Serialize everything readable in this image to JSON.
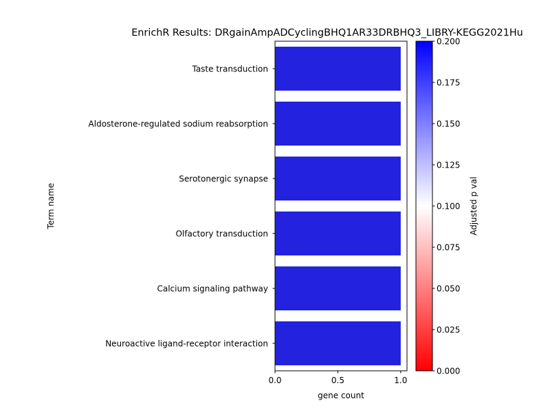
{
  "chart_data": {
    "type": "bar",
    "orientation": "horizontal",
    "title": "EnrichR Results: DRgainAmpADCyclingBHQ1AR33DRBHQ3_LIBRY-KEGG2021Hu",
    "xlabel": "gene count",
    "ylabel": "Term name",
    "categories": [
      "Taste transduction",
      "Aldosterone-regulated sodium reabsorption",
      "Serotonergic synapse",
      "Olfactory transduction",
      "Calcium signaling pathway",
      "Neuroactive ligand-receptor interaction"
    ],
    "values": [
      1,
      1,
      1,
      1,
      1,
      1
    ],
    "adjusted_p_val": [
      0.186,
      0.186,
      0.186,
      0.186,
      0.186,
      0.186
    ],
    "bar_color": "#2323DF",
    "xlim": [
      0,
      1.05
    ],
    "xticks": [
      "0.0",
      "0.5",
      "1.0"
    ],
    "xtick_values": [
      0,
      0.5,
      1.0
    ],
    "colorbar": {
      "label": "Adjusted p val",
      "range": [
        0,
        0.2
      ],
      "ticks": [
        "0.000",
        "0.025",
        "0.050",
        "0.075",
        "0.100",
        "0.125",
        "0.150",
        "0.175",
        "0.200"
      ],
      "tick_values": [
        0,
        0.025,
        0.05,
        0.075,
        0.1,
        0.125,
        0.15,
        0.175,
        0.2
      ],
      "colormap": "bwr_r",
      "color_low": "#FF0000",
      "color_mid": "#FFFFFF",
      "color_high": "#0000FF"
    },
    "grid": false,
    "legend": "none"
  }
}
